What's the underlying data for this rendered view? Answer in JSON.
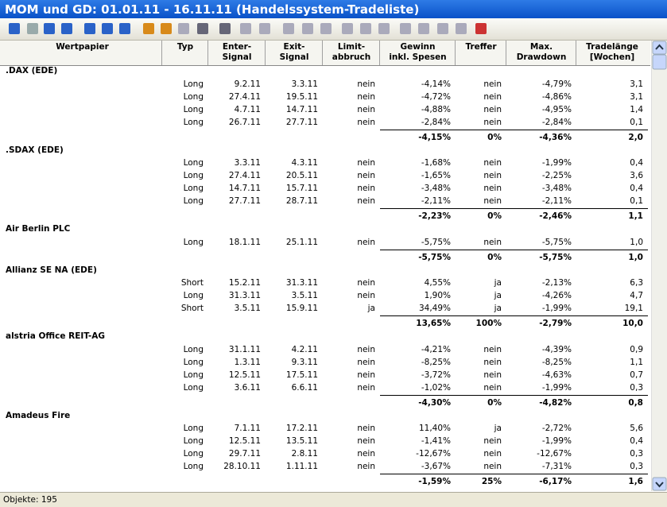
{
  "window": {
    "title": "MOM und GD: 01.01.11 - 16.11.11 (Handelssystem-Tradeliste)"
  },
  "table": {
    "columns": [
      [
        "Wertpapier"
      ],
      [
        "Typ"
      ],
      [
        "Enter-",
        "Signal"
      ],
      [
        "Exit-",
        "Signal"
      ],
      [
        "Limit-",
        "abbruch"
      ],
      [
        "Gewinn",
        "inkl. Spesen"
      ],
      [
        "Treffer"
      ],
      [
        "Max.",
        "Drawdown"
      ],
      [
        "Tradelänge",
        "[Wochen]"
      ]
    ],
    "groups": [
      {
        "name": ".DAX (EDE)",
        "trades": [
          [
            "Long",
            "9.2.11",
            "3.3.11",
            "nein",
            "-4,14%",
            "nein",
            "-4,79%",
            "3,1"
          ],
          [
            "Long",
            "27.4.11",
            "19.5.11",
            "nein",
            "-4,72%",
            "nein",
            "-4,86%",
            "3,1"
          ],
          [
            "Long",
            "4.7.11",
            "14.7.11",
            "nein",
            "-4,88%",
            "nein",
            "-4,95%",
            "1,4"
          ],
          [
            "Long",
            "26.7.11",
            "27.7.11",
            "nein",
            "-2,84%",
            "nein",
            "-2,84%",
            "0,1"
          ]
        ],
        "summary": [
          "-4,15%",
          "0%",
          "-4,36%",
          "2,0"
        ]
      },
      {
        "name": ".SDAX (EDE)",
        "trades": [
          [
            "Long",
            "3.3.11",
            "4.3.11",
            "nein",
            "-1,68%",
            "nein",
            "-1,99%",
            "0,4"
          ],
          [
            "Long",
            "27.4.11",
            "20.5.11",
            "nein",
            "-1,65%",
            "nein",
            "-2,25%",
            "3,6"
          ],
          [
            "Long",
            "14.7.11",
            "15.7.11",
            "nein",
            "-3,48%",
            "nein",
            "-3,48%",
            "0,4"
          ],
          [
            "Long",
            "27.7.11",
            "28.7.11",
            "nein",
            "-2,11%",
            "nein",
            "-2,11%",
            "0,1"
          ]
        ],
        "summary": [
          "-2,23%",
          "0%",
          "-2,46%",
          "1,1"
        ]
      },
      {
        "name": "Air Berlin PLC",
        "trades": [
          [
            "Long",
            "18.1.11",
            "25.1.11",
            "nein",
            "-5,75%",
            "nein",
            "-5,75%",
            "1,0"
          ]
        ],
        "summary": [
          "-5,75%",
          "0%",
          "-5,75%",
          "1,0"
        ]
      },
      {
        "name": "Allianz SE NA (EDE)",
        "trades": [
          [
            "Short",
            "15.2.11",
            "31.3.11",
            "nein",
            "4,55%",
            "ja",
            "-2,13%",
            "6,3"
          ],
          [
            "Long",
            "31.3.11",
            "3.5.11",
            "nein",
            "1,90%",
            "ja",
            "-4,26%",
            "4,7"
          ],
          [
            "Short",
            "3.5.11",
            "15.9.11",
            "ja",
            "34,49%",
            "ja",
            "-1,99%",
            "19,1"
          ]
        ],
        "summary": [
          "13,65%",
          "100%",
          "-2,79%",
          "10,0"
        ]
      },
      {
        "name": "alstria Office REIT-AG",
        "trades": [
          [
            "Long",
            "31.1.11",
            "4.2.11",
            "nein",
            "-4,21%",
            "nein",
            "-4,39%",
            "0,9"
          ],
          [
            "Long",
            "1.3.11",
            "9.3.11",
            "nein",
            "-8,25%",
            "nein",
            "-8,25%",
            "1,1"
          ],
          [
            "Long",
            "12.5.11",
            "17.5.11",
            "nein",
            "-3,72%",
            "nein",
            "-4,63%",
            "0,7"
          ],
          [
            "Long",
            "3.6.11",
            "6.6.11",
            "nein",
            "-1,02%",
            "nein",
            "-1,99%",
            "0,3"
          ]
        ],
        "summary": [
          "-4,30%",
          "0%",
          "-4,82%",
          "0,8"
        ]
      },
      {
        "name": "Amadeus Fire",
        "trades": [
          [
            "Long",
            "7.1.11",
            "17.2.11",
            "nein",
            "11,40%",
            "ja",
            "-2,72%",
            "5,6"
          ],
          [
            "Long",
            "12.5.11",
            "13.5.11",
            "nein",
            "-1,41%",
            "nein",
            "-1,99%",
            "0,4"
          ],
          [
            "Long",
            "29.7.11",
            "2.8.11",
            "nein",
            "-12,67%",
            "nein",
            "-12,67%",
            "0,3"
          ],
          [
            "Long",
            "28.10.11",
            "1.11.11",
            "nein",
            "-3,67%",
            "nein",
            "-7,31%",
            "0,3"
          ]
        ],
        "summary": [
          "-1,59%",
          "25%",
          "-6,17%",
          "1,6"
        ]
      }
    ]
  },
  "status": {
    "text": "Objekte: 195"
  }
}
